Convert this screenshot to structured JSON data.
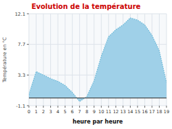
{
  "chart_data": {
    "type": "area",
    "title": "Evolution de la température",
    "x_label": "heure par heure",
    "y_label": "Température en °C",
    "x": [
      0,
      1,
      2,
      3,
      4,
      5,
      6,
      7,
      8,
      9,
      10,
      11,
      12,
      13,
      14,
      15,
      16,
      17,
      18,
      19
    ],
    "values": [
      0.5,
      3.8,
      3.3,
      2.8,
      2.4,
      1.8,
      0.8,
      -0.5,
      0.2,
      2.5,
      6.0,
      8.8,
      9.8,
      10.5,
      11.5,
      11.2,
      10.5,
      9.0,
      6.8,
      2.2
    ],
    "color": "#9fd0e8",
    "line_color": "#68b8d8",
    "line_style": "dotted",
    "title_color": "#cc0000",
    "xlim": [
      0,
      19
    ],
    "ylim": [
      -1.1,
      12.1
    ],
    "xticks": [
      0,
      1,
      2,
      3,
      4,
      5,
      6,
      7,
      8,
      9,
      10,
      11,
      12,
      13,
      14,
      15,
      16,
      17,
      18,
      19
    ],
    "yticks": [
      -1.1,
      3.3,
      7.7,
      12.1
    ],
    "grid": true
  }
}
